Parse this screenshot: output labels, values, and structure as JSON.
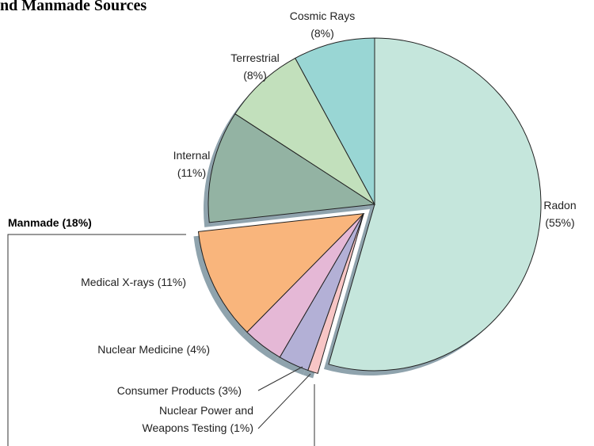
{
  "chart_data": {
    "type": "pie",
    "title": "nd Manmade Sources",
    "annotation": "Manmade (18%)",
    "categories": [
      "Radon",
      "Nuclear Power and\nWeapons Testing",
      "Consumer Products",
      "Nuclear Medicine",
      "Medical X-rays",
      "Internal",
      "Terrestrial",
      "Cosmic Rays"
    ],
    "values": [
      55,
      1,
      3,
      4,
      11,
      11,
      8,
      8
    ],
    "value_labels": [
      "(55%)",
      "(1%)",
      "(3%)",
      "(4%)",
      "(11%)",
      "(11%)",
      "(8%)",
      "(8%)"
    ],
    "colors": [
      "#c5e6dc",
      "#f7c5c5",
      "#b3b0d6",
      "#e5b8d6",
      "#f9b57c",
      "#93b3a3",
      "#c2e0bc",
      "#99d6d4"
    ],
    "exploded": [
      false,
      true,
      true,
      true,
      true,
      false,
      false,
      false
    ]
  }
}
